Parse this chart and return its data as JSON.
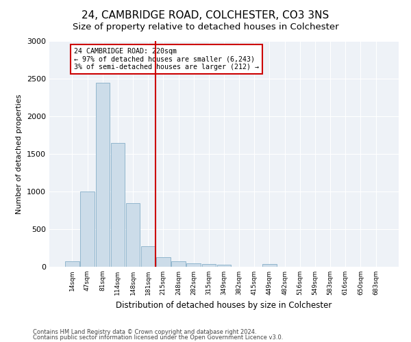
{
  "title": "24, CAMBRIDGE ROAD, COLCHESTER, CO3 3NS",
  "subtitle": "Size of property relative to detached houses in Colchester",
  "xlabel": "Distribution of detached houses by size in Colchester",
  "ylabel": "Number of detached properties",
  "footnote1": "Contains HM Land Registry data © Crown copyright and database right 2024.",
  "footnote2": "Contains public sector information licensed under the Open Government Licence v3.0.",
  "categories": [
    "14sqm",
    "47sqm",
    "81sqm",
    "114sqm",
    "148sqm",
    "181sqm",
    "215sqm",
    "248sqm",
    "282sqm",
    "315sqm",
    "349sqm",
    "382sqm",
    "415sqm",
    "449sqm",
    "482sqm",
    "516sqm",
    "549sqm",
    "583sqm",
    "616sqm",
    "650sqm",
    "683sqm"
  ],
  "values": [
    70,
    1000,
    2450,
    1650,
    850,
    270,
    130,
    70,
    50,
    40,
    30,
    0,
    0,
    40,
    0,
    0,
    0,
    0,
    0,
    0,
    0
  ],
  "bar_color": "#ccdce9",
  "bar_edge_color": "#85aec8",
  "ref_line_x": 6,
  "ref_line_color": "#cc0000",
  "annotation_text": "24 CAMBRIDGE ROAD: 220sqm\n← 97% of detached houses are smaller (6,243)\n3% of semi-detached houses are larger (212) →",
  "annotation_box_color": "#cc0000",
  "annotation_text_color": "#000000",
  "ylim": [
    0,
    3000
  ],
  "yticks": [
    0,
    500,
    1000,
    1500,
    2000,
    2500,
    3000
  ],
  "bg_color": "#ffffff",
  "plot_bg_color": "#eef2f7",
  "title_fontsize": 11,
  "subtitle_fontsize": 9.5,
  "grid_color": "#ffffff"
}
